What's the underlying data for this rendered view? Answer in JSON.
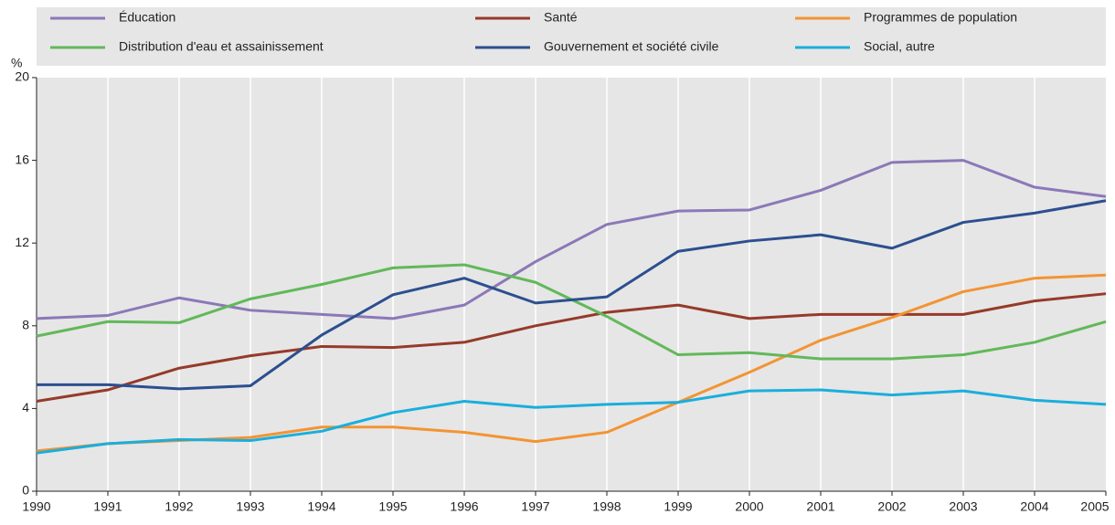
{
  "chart_data": {
    "type": "line",
    "y_label": "%",
    "categories": [
      "1990",
      "1991",
      "1992",
      "1993",
      "1994",
      "1995",
      "1996",
      "1997",
      "1998",
      "1999",
      "2000",
      "2001",
      "2002",
      "2003",
      "2004",
      "2005"
    ],
    "series": [
      {
        "name": "Éducation",
        "color": "#8c78b8",
        "values": [
          8.35,
          8.5,
          9.35,
          8.75,
          8.55,
          8.35,
          9.0,
          11.1,
          12.9,
          13.55,
          13.6,
          14.55,
          15.9,
          16.0,
          14.7,
          14.25
        ]
      },
      {
        "name": "Santé",
        "color": "#963a2a",
        "values": [
          4.35,
          4.9,
          5.95,
          6.55,
          7.0,
          6.95,
          7.2,
          8.0,
          8.65,
          9.0,
          8.35,
          8.55,
          8.55,
          8.55,
          9.2,
          9.55
        ]
      },
      {
        "name": "Programmes de population",
        "color": "#f39433",
        "values": [
          1.95,
          2.3,
          2.45,
          2.6,
          3.1,
          3.1,
          2.85,
          2.4,
          2.85,
          4.3,
          5.75,
          7.3,
          8.4,
          9.65,
          10.3,
          10.45
        ]
      },
      {
        "name": "Distribution d'eau et assainissement",
        "color": "#62b85a",
        "values": [
          7.5,
          8.2,
          8.15,
          9.3,
          10.0,
          10.8,
          10.95,
          10.1,
          8.45,
          6.6,
          6.7,
          6.4,
          6.4,
          6.6,
          7.2,
          8.2
        ]
      },
      {
        "name": "Gouvernement et société civile",
        "color": "#2c4f8f",
        "values": [
          5.15,
          5.15,
          4.95,
          5.1,
          7.55,
          9.5,
          10.3,
          9.1,
          9.4,
          11.6,
          12.1,
          12.4,
          11.75,
          13.0,
          13.45,
          14.05
        ]
      },
      {
        "name": "Social, autre",
        "color": "#1aaedc",
        "values": [
          1.85,
          2.3,
          2.5,
          2.45,
          2.9,
          3.8,
          4.35,
          4.05,
          4.2,
          4.3,
          4.85,
          4.9,
          4.65,
          4.85,
          4.4,
          4.2
        ]
      }
    ],
    "ylim": [
      0,
      20
    ],
    "yticks": [
      0,
      4,
      8,
      12,
      16,
      20
    ],
    "grid": "vertical"
  }
}
